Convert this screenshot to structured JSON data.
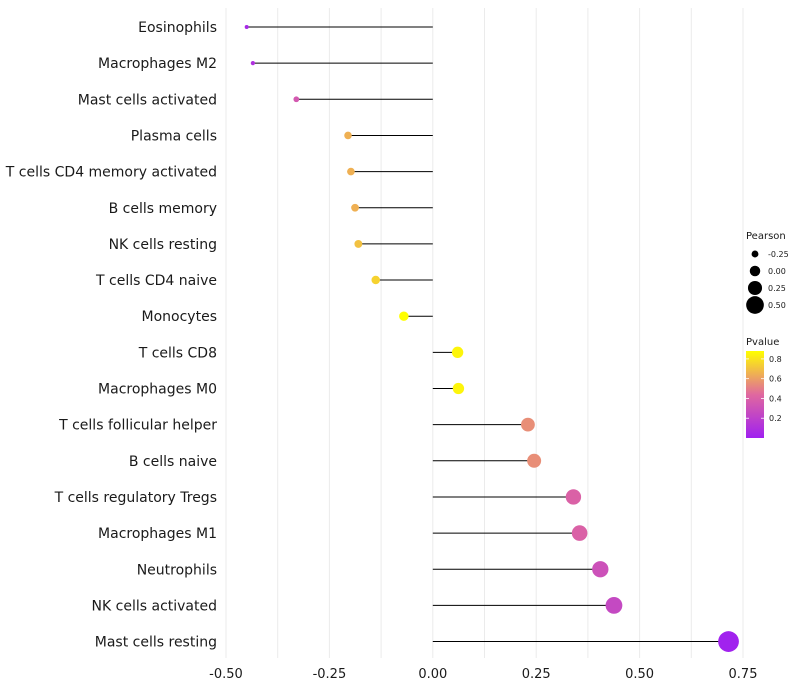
{
  "chart_data": {
    "type": "lollipop",
    "title": "",
    "xlabel": "",
    "ylabel": "",
    "xlim": [
      -0.5,
      0.75
    ],
    "x_ticks": [
      -0.5,
      -0.25,
      0.0,
      0.25,
      0.5,
      0.75
    ],
    "x_tick_labels": [
      "-0.50",
      "-0.25",
      "0.00",
      "0.25",
      "0.50",
      "0.75"
    ],
    "grid": true,
    "categories": [
      "Eosinophils",
      "Macrophages M2",
      "Mast cells activated",
      "Plasma cells",
      "T cells CD4 memory activated",
      "B cells memory",
      "NK cells resting",
      "T cells CD4 naive",
      "Monocytes",
      "T cells CD8",
      "Macrophages M0",
      "T cells follicular helper",
      "B cells naive",
      "T cells regulatory  Tregs ",
      "Macrophages M1",
      "Neutrophils",
      "NK cells activated",
      "Mast cells resting"
    ],
    "pearson": [
      -0.45,
      -0.435,
      -0.33,
      -0.205,
      -0.198,
      -0.188,
      -0.18,
      -0.138,
      -0.07,
      0.06,
      0.062,
      0.23,
      0.245,
      0.34,
      0.355,
      0.405,
      0.438,
      0.715
    ],
    "pvalue": [
      0.05,
      0.1,
      0.35,
      0.65,
      0.65,
      0.65,
      0.7,
      0.75,
      0.88,
      0.85,
      0.85,
      0.55,
      0.55,
      0.4,
      0.4,
      0.3,
      0.25,
      0.01
    ],
    "size_legend": {
      "title": "Pearson",
      "values": [
        -0.25,
        0.0,
        0.25,
        0.5
      ],
      "labels": [
        "-0.25",
        "0.00",
        "0.25",
        "0.50"
      ]
    },
    "color_legend": {
      "title": "Pvalue",
      "ticks": [
        0.2,
        0.4,
        0.6,
        0.8
      ],
      "labels": [
        "0.2",
        "0.4",
        "0.6",
        "0.8"
      ],
      "color_low": "#a020f0",
      "color_mid": "#e0689f",
      "color_high": "#ffff00",
      "range": [
        0.0,
        0.88
      ]
    },
    "stem_color": "#000000"
  }
}
